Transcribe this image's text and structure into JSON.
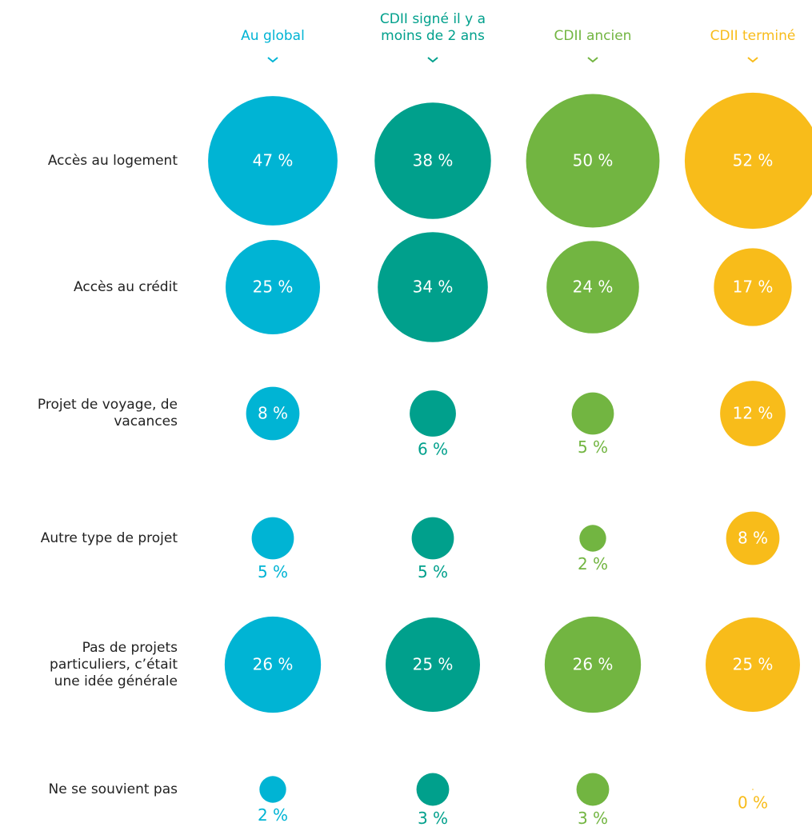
{
  "chart_data": {
    "type": "bubble-matrix",
    "categories": [
      "Accès au logement",
      "Accès au crédit",
      "Projet de voyage, de vacances",
      "Autre type de projet",
      "Pas de projets particuliers, c’était une idée générale",
      "Ne se souvient pas"
    ],
    "series": [
      {
        "name": "Au global",
        "color": "#00b4d4",
        "values": [
          47,
          25,
          8,
          5,
          26,
          2
        ],
        "value_labels": [
          "47 %",
          "25 %",
          "8 %",
          "5 %",
          "26 %",
          "2 %"
        ]
      },
      {
        "name": "CDII signé il y a moins de 2 ans",
        "color": "#00a08c",
        "values": [
          38,
          34,
          6,
          5,
          25,
          3
        ],
        "value_labels": [
          "38 %",
          "34 %",
          "6 %",
          "5 %",
          "25 %",
          "3 %"
        ]
      },
      {
        "name": "CDII ancien",
        "color": "#72b541",
        "values": [
          50,
          24,
          5,
          2,
          26,
          3
        ],
        "value_labels": [
          "50 %",
          "24 %",
          "5 %",
          "2 %",
          "26 %",
          "3 %"
        ]
      },
      {
        "name": "CDII terminé",
        "color": "#f8bc1a",
        "values": [
          52,
          17,
          12,
          8,
          25,
          0
        ],
        "value_labels": [
          "52 %",
          "17 %",
          "12 %",
          "8 %",
          "25 %",
          "0 %"
        ]
      }
    ]
  }
}
